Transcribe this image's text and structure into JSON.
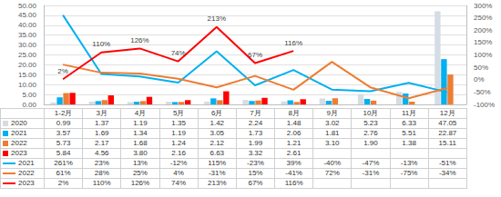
{
  "chart_data": {
    "type": "bar",
    "categories": [
      "1-2月",
      "3月",
      "4月",
      "5月",
      "6月",
      "7月",
      "8月",
      "9月",
      "10月",
      "11月",
      "12月"
    ],
    "ylim": [
      0,
      50
    ],
    "yticks": [
      {
        "value": 0,
        "label": "0.00"
      },
      {
        "value": 5,
        "label": "5.00"
      },
      {
        "value": 10,
        "label": "10.00"
      },
      {
        "value": 15,
        "label": "15.00"
      },
      {
        "value": 20,
        "label": "20.00"
      },
      {
        "value": 25,
        "label": "25.00"
      },
      {
        "value": 30,
        "label": "30.00"
      },
      {
        "value": 35,
        "label": "35.00"
      },
      {
        "value": 40,
        "label": "40.00"
      },
      {
        "value": 45,
        "label": "45.00"
      },
      {
        "value": 50,
        "label": "50.00"
      }
    ],
    "y2lim": [
      -100,
      300
    ],
    "y2ticks": [
      {
        "value": -100,
        "label": "-100%"
      },
      {
        "value": -50,
        "label": "-50%"
      },
      {
        "value": 0,
        "label": "0%"
      },
      {
        "value": 50,
        "label": "50%"
      },
      {
        "value": 100,
        "label": "100%"
      },
      {
        "value": 150,
        "label": "150%"
      },
      {
        "value": 200,
        "label": "200%"
      },
      {
        "value": 250,
        "label": "250%"
      },
      {
        "value": 300,
        "label": "300%"
      }
    ],
    "grid": true,
    "series": [
      {
        "name": "2020",
        "type": "bar",
        "color": "#D6DCE4",
        "values": [
          0.99,
          1.37,
          1.19,
          1.35,
          1.42,
          2.24,
          1.48,
          3.02,
          5.23,
          6.33,
          47.05
        ]
      },
      {
        "name": "2021",
        "type": "bar",
        "color": "#00B0F0",
        "values": [
          3.57,
          1.69,
          1.34,
          1.19,
          3.05,
          1.73,
          2.06,
          1.81,
          2.76,
          5.51,
          22.87
        ]
      },
      {
        "name": "2022",
        "type": "bar",
        "color": "#ED7D31",
        "values": [
          5.73,
          2.17,
          1.68,
          1.24,
          2.12,
          1.99,
          1.21,
          3.1,
          1.9,
          1.38,
          15.11
        ]
      },
      {
        "name": "2023",
        "type": "bar",
        "color": "#FF0000",
        "values": [
          5.84,
          4.56,
          3.8,
          2.16,
          6.63,
          3.32,
          2.61,
          null,
          null,
          null,
          null
        ]
      },
      {
        "name": "2021",
        "type": "line",
        "axis": "y2",
        "color": "#00B0F0",
        "values": [
          261,
          23,
          13,
          -12,
          115,
          -23,
          39,
          -40,
          -47,
          -13,
          -51
        ],
        "value_labels": [
          "261%",
          "23%",
          "13%",
          "-12%",
          "115%",
          "-23%",
          "39%",
          "-40%",
          "-47%",
          "-13%",
          "-51%"
        ]
      },
      {
        "name": "2022",
        "type": "line",
        "axis": "y2",
        "color": "#ED7D31",
        "values": [
          61,
          28,
          25,
          4,
          -31,
          15,
          -41,
          72,
          -31,
          -75,
          -34
        ],
        "value_labels": [
          "61%",
          "28%",
          "25%",
          "4%",
          "-31%",
          "15%",
          "-41%",
          "72%",
          "-31%",
          "-75%",
          "-34%"
        ]
      },
      {
        "name": "2023",
        "type": "line",
        "axis": "y2",
        "color": "#FF0000",
        "data_labels": true,
        "values": [
          2,
          110,
          126,
          74,
          213,
          67,
          116,
          null,
          null,
          null,
          null
        ],
        "value_labels": [
          "2%",
          "110%",
          "126%",
          "74%",
          "213%",
          "67%",
          "116%",
          null,
          null,
          null,
          null
        ]
      }
    ]
  }
}
